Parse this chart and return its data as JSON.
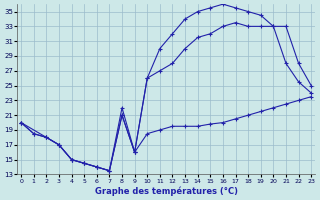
{
  "title": "Graphe des températures (°C)",
  "background_color": "#cde8e8",
  "grid_color": "#9bbccc",
  "line_color": "#2222aa",
  "xlim": [
    -0.3,
    23.3
  ],
  "ylim": [
    13,
    36
  ],
  "xticks": [
    0,
    1,
    2,
    3,
    4,
    5,
    6,
    7,
    8,
    9,
    10,
    11,
    12,
    13,
    14,
    15,
    16,
    17,
    18,
    19,
    20,
    21,
    22,
    23
  ],
  "yticks": [
    13,
    15,
    17,
    19,
    21,
    23,
    25,
    27,
    29,
    31,
    33,
    35
  ],
  "line1_x": [
    0,
    1,
    2,
    3,
    4,
    5,
    6,
    7,
    8,
    9,
    10,
    11,
    12,
    13,
    14,
    15,
    16,
    17,
    18,
    19,
    20,
    21,
    22,
    23
  ],
  "line1_y": [
    20,
    18.5,
    18,
    17,
    15,
    14.5,
    14,
    13.5,
    22,
    16,
    18.5,
    19,
    19.5,
    19.5,
    19.5,
    19.8,
    20,
    20.5,
    21,
    21.5,
    22,
    22.5,
    23,
    23.5
  ],
  "line2_x": [
    0,
    1,
    2,
    3,
    4,
    5,
    6,
    7,
    8,
    9,
    10,
    11,
    12,
    13,
    14,
    15,
    16,
    17,
    18,
    19,
    20,
    21,
    22,
    23
  ],
  "line2_y": [
    20,
    18.5,
    18,
    17,
    15,
    14.5,
    14,
    13.5,
    21,
    16,
    26,
    30,
    32,
    34,
    35,
    35.5,
    36,
    35.5,
    35,
    34.5,
    33,
    28,
    25.5,
    24
  ],
  "line3_x": [
    0,
    2,
    3,
    4,
    5,
    6,
    7,
    8,
    9,
    10,
    11,
    12,
    13,
    14,
    15,
    16,
    17,
    18,
    19,
    20,
    21,
    22,
    23
  ],
  "line3_y": [
    20,
    18,
    17,
    15,
    14.5,
    14,
    13.5,
    21,
    16,
    26,
    27,
    28,
    30,
    31.5,
    32,
    33,
    33.5,
    33,
    33,
    33,
    33,
    28,
    25
  ],
  "xlabel_fontsize": 6,
  "tick_fontsize": 5
}
